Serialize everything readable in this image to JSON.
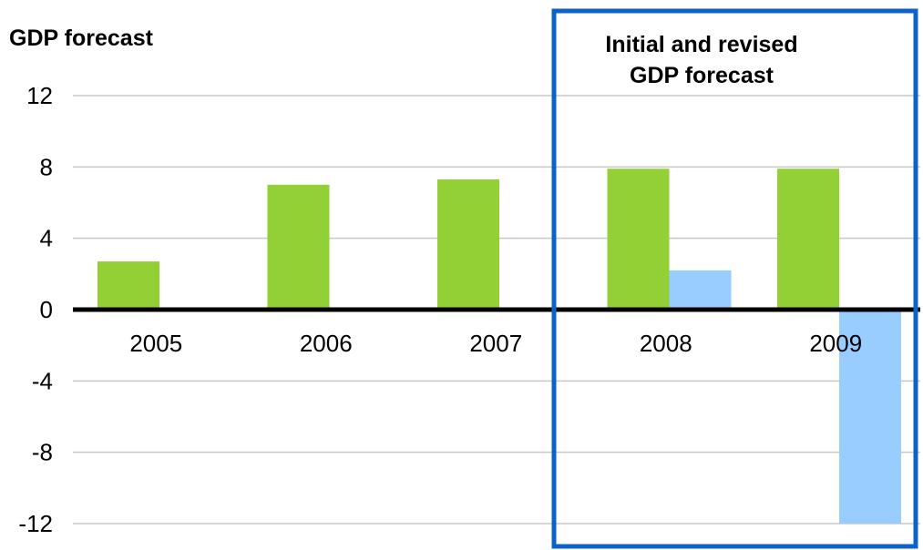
{
  "chart_data": {
    "type": "bar",
    "ylabel": "GDP forecast",
    "annotation": {
      "line1": "Initial and revised",
      "line2": "GDP forecast"
    },
    "categories": [
      "2005",
      "2006",
      "2007",
      "2008",
      "2009"
    ],
    "series": [
      {
        "color": "#92d036",
        "values": [
          2.7,
          7.0,
          7.3,
          7.9,
          7.9
        ]
      },
      {
        "color": "#99ccff",
        "values": [
          null,
          null,
          null,
          2.2,
          -12.0
        ]
      }
    ],
    "ylim": [
      -12,
      12
    ],
    "yticks": [
      "12",
      "8",
      "4",
      "0",
      "-4",
      "-8",
      "-12"
    ],
    "grid": true,
    "highlight_box": {
      "categories": [
        "2008",
        "2009"
      ],
      "color": "#0b63c9"
    }
  }
}
